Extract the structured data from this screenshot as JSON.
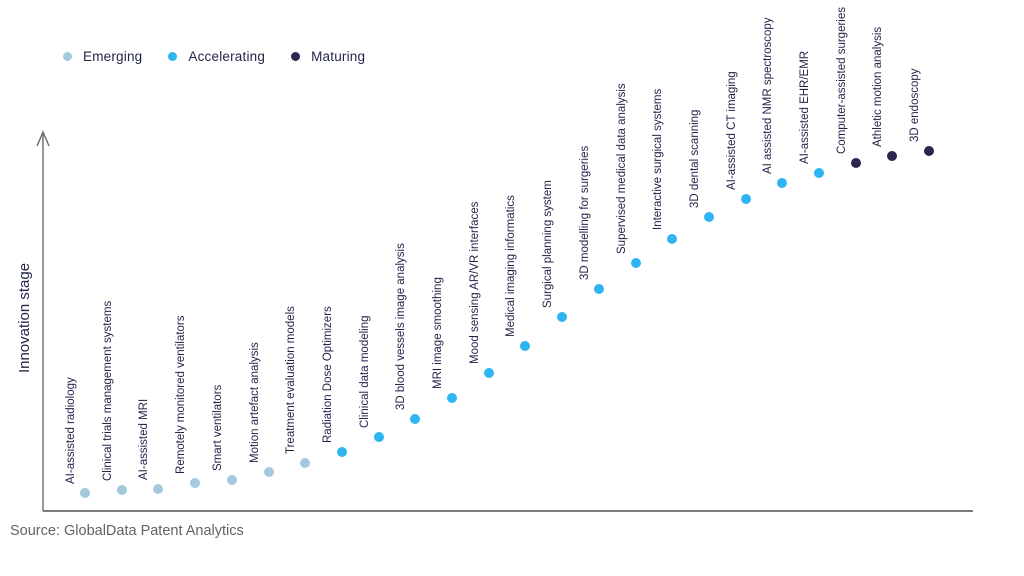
{
  "chart_data": {
    "type": "scatter",
    "title": "",
    "xlabel": "",
    "ylabel": "Innovation stage",
    "ylim": [
      0,
      100
    ],
    "grid": false,
    "legend_position": "top-left",
    "y_axis_arrow": true,
    "legend": [
      {
        "label": "Emerging",
        "color": "#a3c9de"
      },
      {
        "label": "Accelerating",
        "color": "#2fb4f2"
      },
      {
        "label": "Maturing",
        "color": "#2e2450"
      }
    ],
    "points": [
      {
        "label": "AI-assisted radiology",
        "stage": "Emerging",
        "level": 4.8
      },
      {
        "label": "Clinical trials management systems",
        "stage": "Emerging",
        "level": 5.6
      },
      {
        "label": "AI-assisted MRI",
        "stage": "Emerging",
        "level": 5.9
      },
      {
        "label": "Remotely monitored ventilators",
        "stage": "Emerging",
        "level": 7.4
      },
      {
        "label": "Smart ventilators",
        "stage": "Emerging",
        "level": 8.2
      },
      {
        "label": "Motion artefact analysis",
        "stage": "Emerging",
        "level": 10.4
      },
      {
        "label": "Treatment evaluation models",
        "stage": "Emerging",
        "level": 12.8
      },
      {
        "label": "Radiation Dose Optimizers",
        "stage": "Accelerating",
        "level": 15.7
      },
      {
        "label": "Clinical data modeling",
        "stage": "Accelerating",
        "level": 19.7
      },
      {
        "label": "3D blood vessels image analysis",
        "stage": "Accelerating",
        "level": 24.5
      },
      {
        "label": "MRI image smoothing",
        "stage": "Accelerating",
        "level": 30.0
      },
      {
        "label": "Mood sensing AR/VR interfaces",
        "stage": "Accelerating",
        "level": 36.7
      },
      {
        "label": "Medical imaging informatics",
        "stage": "Accelerating",
        "level": 43.9
      },
      {
        "label": "Surgical planning system",
        "stage": "Accelerating",
        "level": 51.6
      },
      {
        "label": "3D modelling for surgeries",
        "stage": "Accelerating",
        "level": 59.0
      },
      {
        "label": "Supervised medical data analysis",
        "stage": "Accelerating",
        "level": 66.0
      },
      {
        "label": "Interactive surgical systems",
        "stage": "Accelerating",
        "level": 72.3
      },
      {
        "label": "3D dental scanning",
        "stage": "Accelerating",
        "level": 78.2
      },
      {
        "label": "AI-assisted CT imaging",
        "stage": "Accelerating",
        "level": 83.0
      },
      {
        "label": "AI assisted NMR spectroscopy",
        "stage": "Accelerating",
        "level": 87.2
      },
      {
        "label": "AI-assisted EHR/EMR",
        "stage": "Accelerating",
        "level": 89.9
      },
      {
        "label": "Computer-assisted surgeries",
        "stage": "Maturing",
        "level": 92.6
      },
      {
        "label": "Athletic motion analysis",
        "stage": "Maturing",
        "level": 94.4
      },
      {
        "label": "3D endoscopy",
        "stage": "Maturing",
        "level": 95.7
      }
    ],
    "source": "Source: GlobalData Patent Analytics"
  }
}
